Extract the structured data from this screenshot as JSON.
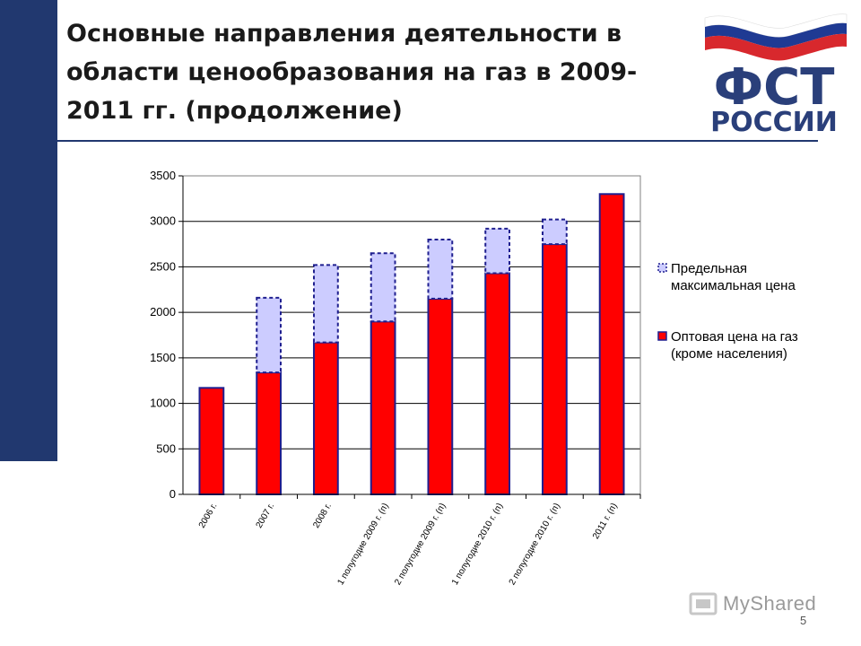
{
  "slide": {
    "title": "Основные направления деятельности в области ценообразования на газ в 2009-2011 гг. (продолжение)",
    "page_number": "5",
    "watermark": "MyShared",
    "logo_text": [
      "ФСТ",
      "РОССИИ"
    ],
    "colors": {
      "sidebar": "#21386f",
      "flag_white": "#ffffff",
      "flag_blue": "#1f3a93",
      "flag_red": "#d8282d"
    }
  },
  "chart_data": {
    "type": "bar",
    "stacked": true,
    "categories": [
      "2006 г.",
      "2007 г.",
      "2008 г.",
      "1 полугодие 2009 г. (п)",
      "2 полугодие 2009 г. (п)",
      "1 полугодие 2010 г. (п)",
      "2 полугодие 2010 г. (п)",
      "2011 г. (п)"
    ],
    "series": [
      {
        "name": "Оптовая цена на газ (кроме населения)",
        "values": [
          1170,
          1340,
          1670,
          1900,
          2150,
          2430,
          2750,
          3300
        ],
        "color": "#ff0000",
        "edge_color": "#1f1f8f"
      },
      {
        "name": "Предельная максимальная цена",
        "values": [
          0,
          820,
          850,
          750,
          650,
          490,
          270,
          0
        ],
        "color": "#ccccff",
        "edge_color": "#1f1f8f"
      }
    ],
    "legend_order": [
      "Предельная максимальная цена",
      "Оптовая цена на газ (кроме населения)"
    ],
    "legend": [
      {
        "lines": [
          "Предельная",
          "максимальная цена"
        ],
        "color": "#ccccff"
      },
      {
        "lines": [
          "Оптовая цена на газ",
          "(кроме населения)"
        ],
        "color": "#ff0000"
      }
    ],
    "ylim": [
      0,
      3500
    ],
    "yticks": [
      0,
      500,
      1000,
      1500,
      2000,
      2500,
      3000,
      3500
    ],
    "grid": true,
    "legend_position": "right",
    "xlabel": "",
    "ylabel": ""
  }
}
